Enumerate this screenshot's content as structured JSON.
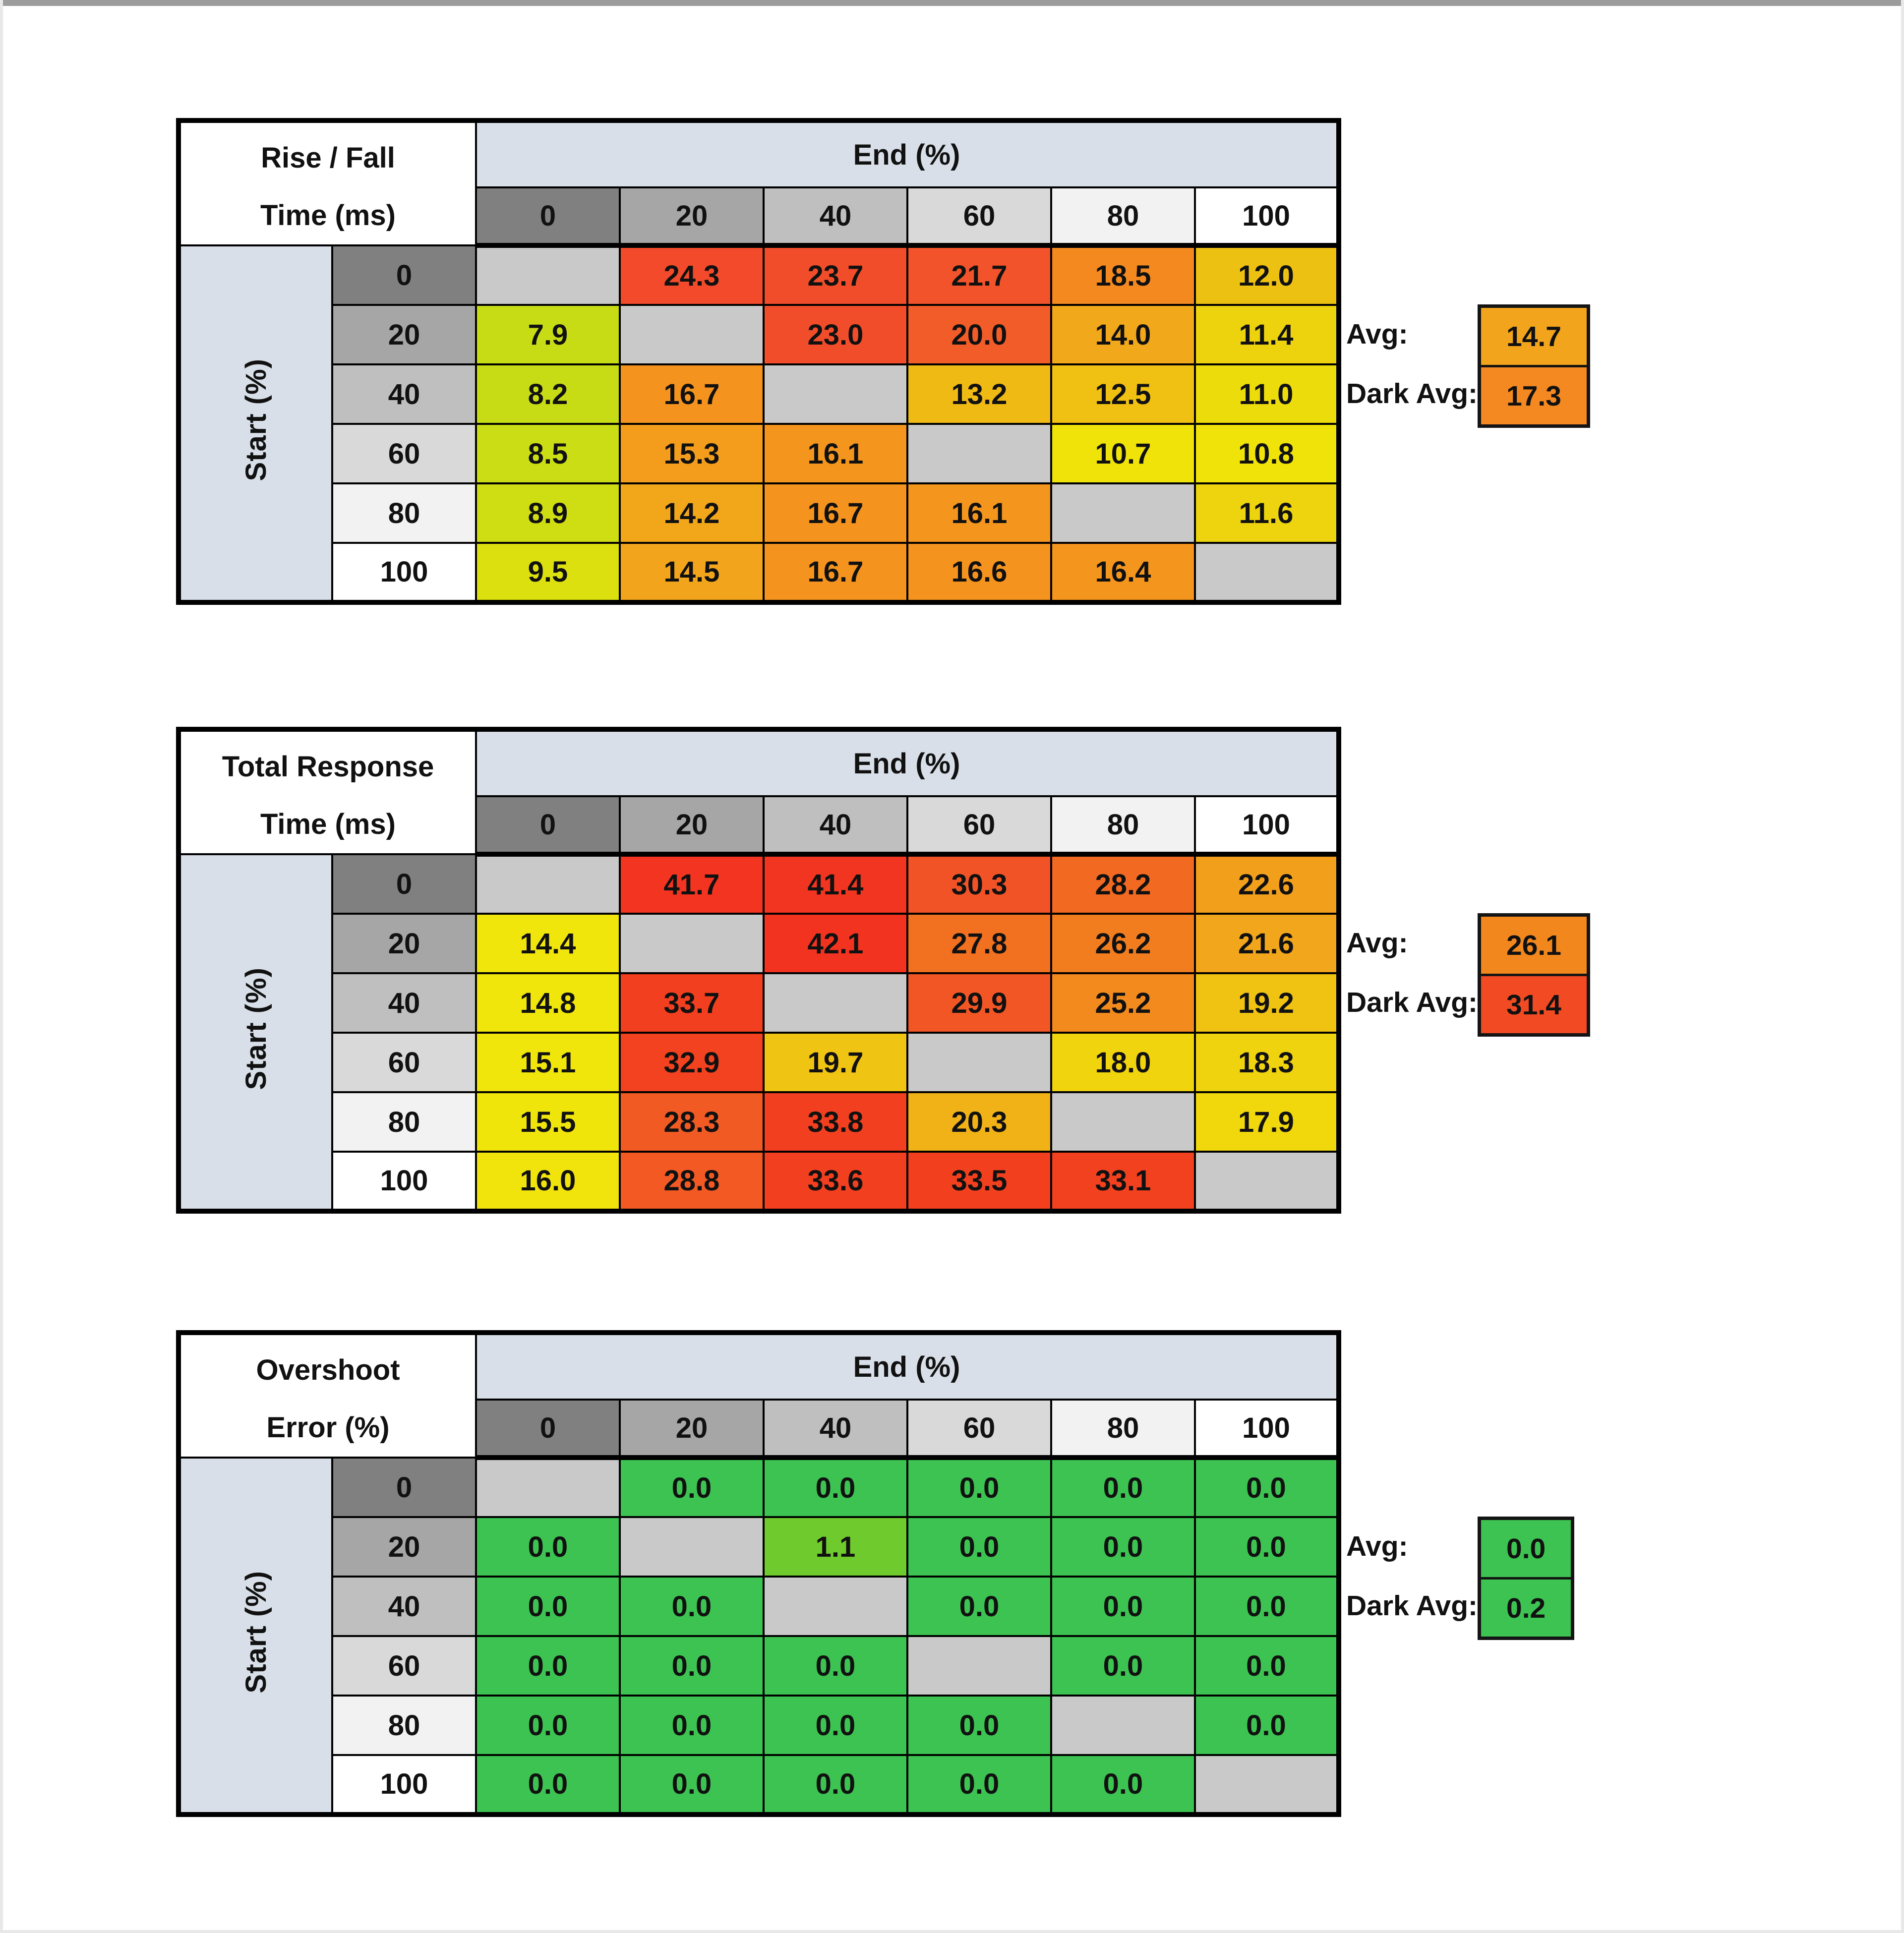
{
  "page": {
    "bg": "#ffffff",
    "top_edge_color": "#9c9c9c",
    "frame_color": "#e8e8e8"
  },
  "shared": {
    "end_label": "End (%)",
    "start_label": "Start (%)",
    "col_headers": [
      "0",
      "20",
      "40",
      "60",
      "80",
      "100"
    ],
    "row_headers": [
      "0",
      "20",
      "40",
      "60",
      "80",
      "100"
    ],
    "header_colors": [
      "#808080",
      "#a6a6a6",
      "#bfbfbf",
      "#d9d9d9",
      "#f2f2f2",
      "#ffffff"
    ],
    "diag_color": "#c9c9c9",
    "band_color": "#d8dfe8",
    "avg_label": "Avg:",
    "dark_avg_label": "Dark Avg:"
  },
  "tables": [
    {
      "title_line1": "Rise / Fall",
      "title_line2": "Time (ms)",
      "avg": {
        "v": "14.7",
        "c": "#f2a41c"
      },
      "dark_avg": {
        "v": "17.3",
        "c": "#f48921"
      },
      "cells": [
        [
          null,
          {
            "v": "24.3",
            "c": "#f24a2a"
          },
          {
            "v": "23.7",
            "c": "#f24d2a"
          },
          {
            "v": "21.7",
            "c": "#f2532a"
          },
          {
            "v": "18.5",
            "c": "#f48a1f"
          },
          {
            "v": "12.0",
            "c": "#edc112"
          }
        ],
        [
          {
            "v": "7.9",
            "c": "#c8dc15"
          },
          null,
          {
            "v": "23.0",
            "c": "#f24d2a"
          },
          {
            "v": "20.0",
            "c": "#f25c28"
          },
          {
            "v": "14.0",
            "c": "#f2a81b"
          },
          {
            "v": "11.4",
            "c": "#edd20e"
          }
        ],
        [
          {
            "v": "8.2",
            "c": "#c8dc15"
          },
          {
            "v": "16.7",
            "c": "#f4931e"
          },
          null,
          {
            "v": "13.2",
            "c": "#f0ba14"
          },
          {
            "v": "12.5",
            "c": "#f0c112"
          },
          {
            "v": "11.0",
            "c": "#eddc0b"
          }
        ],
        [
          {
            "v": "8.5",
            "c": "#cbdd14"
          },
          {
            "v": "15.3",
            "c": "#f49d1d"
          },
          {
            "v": "16.1",
            "c": "#f4961e"
          },
          null,
          {
            "v": "10.7",
            "c": "#f0e309"
          },
          {
            "v": "10.8",
            "c": "#f0e309"
          }
        ],
        [
          {
            "v": "8.9",
            "c": "#cfdd13"
          },
          {
            "v": "14.2",
            "c": "#f2a71b"
          },
          {
            "v": "16.7",
            "c": "#f4931e"
          },
          {
            "v": "16.1",
            "c": "#f4961e"
          },
          null,
          {
            "v": "11.6",
            "c": "#edd40e"
          }
        ],
        [
          {
            "v": "9.5",
            "c": "#dce00e"
          },
          {
            "v": "14.5",
            "c": "#f2a51c"
          },
          {
            "v": "16.7",
            "c": "#f4931e"
          },
          {
            "v": "16.6",
            "c": "#f4941e"
          },
          {
            "v": "16.4",
            "c": "#f4951e"
          },
          null
        ]
      ]
    },
    {
      "title_line1": "Total Response",
      "title_line2": "Time (ms)",
      "avg": {
        "v": "26.1",
        "c": "#f2871e"
      },
      "dark_avg": {
        "v": "31.4",
        "c": "#f24b24"
      },
      "cells": [
        [
          null,
          {
            "v": "41.7",
            "c": "#f23420"
          },
          {
            "v": "41.4",
            "c": "#f23520"
          },
          {
            "v": "30.3",
            "c": "#f25326"
          },
          {
            "v": "28.2",
            "c": "#f26921"
          },
          {
            "v": "22.6",
            "c": "#f2a01c"
          }
        ],
        [
          {
            "v": "14.4",
            "c": "#f0e60b"
          },
          null,
          {
            "v": "42.1",
            "c": "#f23320"
          },
          {
            "v": "27.8",
            "c": "#f27120"
          },
          {
            "v": "26.2",
            "c": "#f27d1f"
          },
          {
            "v": "21.6",
            "c": "#f2a61b"
          }
        ],
        [
          {
            "v": "14.8",
            "c": "#f0e60b"
          },
          {
            "v": "33.7",
            "c": "#f23f1f"
          },
          null,
          {
            "v": "29.9",
            "c": "#f25625"
          },
          {
            "v": "25.2",
            "c": "#f28a1e"
          },
          {
            "v": "19.2",
            "c": "#f0c313"
          }
        ],
        [
          {
            "v": "15.1",
            "c": "#f0e60b"
          },
          {
            "v": "32.9",
            "c": "#f2421f"
          },
          {
            "v": "19.7",
            "c": "#f0c413"
          },
          null,
          {
            "v": "18.0",
            "c": "#f0d40e"
          },
          {
            "v": "18.3",
            "c": "#f0d30f"
          }
        ],
        [
          {
            "v": "15.5",
            "c": "#f0e50b"
          },
          {
            "v": "28.3",
            "c": "#f25a24"
          },
          {
            "v": "33.8",
            "c": "#f23f1f"
          },
          {
            "v": "20.3",
            "c": "#f0b216"
          },
          null,
          {
            "v": "17.9",
            "c": "#f0d80d"
          }
        ],
        [
          {
            "v": "16.0",
            "c": "#f0e40c"
          },
          {
            "v": "28.8",
            "c": "#f25923"
          },
          {
            "v": "33.6",
            "c": "#f23f1f"
          },
          {
            "v": "33.5",
            "c": "#f2401f"
          },
          {
            "v": "33.1",
            "c": "#f2411f"
          },
          null
        ]
      ]
    },
    {
      "title_line1": "Overshoot",
      "title_line2": "Error (%)",
      "avg": {
        "v": "0.0",
        "c": "#3cc351"
      },
      "dark_avg": {
        "v": "0.2",
        "c": "#3cc351"
      },
      "cells": [
        [
          null,
          {
            "v": "0.0",
            "c": "#3cc351"
          },
          {
            "v": "0.0",
            "c": "#3cc351"
          },
          {
            "v": "0.0",
            "c": "#3cc351"
          },
          {
            "v": "0.0",
            "c": "#3cc351"
          },
          {
            "v": "0.0",
            "c": "#3cc351"
          }
        ],
        [
          {
            "v": "0.0",
            "c": "#3cc351"
          },
          null,
          {
            "v": "1.1",
            "c": "#6fca2d"
          },
          {
            "v": "0.0",
            "c": "#3cc351"
          },
          {
            "v": "0.0",
            "c": "#3cc351"
          },
          {
            "v": "0.0",
            "c": "#3cc351"
          }
        ],
        [
          {
            "v": "0.0",
            "c": "#3cc351"
          },
          {
            "v": "0.0",
            "c": "#3cc351"
          },
          null,
          {
            "v": "0.0",
            "c": "#3cc351"
          },
          {
            "v": "0.0",
            "c": "#3cc351"
          },
          {
            "v": "0.0",
            "c": "#3cc351"
          }
        ],
        [
          {
            "v": "0.0",
            "c": "#3cc351"
          },
          {
            "v": "0.0",
            "c": "#3cc351"
          },
          {
            "v": "0.0",
            "c": "#3cc351"
          },
          null,
          {
            "v": "0.0",
            "c": "#3cc351"
          },
          {
            "v": "0.0",
            "c": "#3cc351"
          }
        ],
        [
          {
            "v": "0.0",
            "c": "#3cc351"
          },
          {
            "v": "0.0",
            "c": "#3cc351"
          },
          {
            "v": "0.0",
            "c": "#3cc351"
          },
          {
            "v": "0.0",
            "c": "#3cc351"
          },
          null,
          {
            "v": "0.0",
            "c": "#3cc351"
          }
        ],
        [
          {
            "v": "0.0",
            "c": "#3cc351"
          },
          {
            "v": "0.0",
            "c": "#3cc351"
          },
          {
            "v": "0.0",
            "c": "#3cc351"
          },
          {
            "v": "0.0",
            "c": "#3cc351"
          },
          {
            "v": "0.0",
            "c": "#3cc351"
          },
          null
        ]
      ]
    }
  ],
  "chart_data": [
    {
      "type": "heatmap",
      "title": "Rise / Fall Time (ms)",
      "xlabel": "End (%)",
      "ylabel": "Start (%)",
      "x": [
        0,
        20,
        40,
        60,
        80,
        100
      ],
      "y": [
        0,
        20,
        40,
        60,
        80,
        100
      ],
      "values": [
        [
          null,
          24.3,
          23.7,
          21.7,
          18.5,
          12.0
        ],
        [
          7.9,
          null,
          23.0,
          20.0,
          14.0,
          11.4
        ],
        [
          8.2,
          16.7,
          null,
          13.2,
          12.5,
          11.0
        ],
        [
          8.5,
          15.3,
          16.1,
          null,
          10.7,
          10.8
        ],
        [
          8.9,
          14.2,
          16.7,
          16.1,
          null,
          11.6
        ],
        [
          9.5,
          14.5,
          16.7,
          16.6,
          16.4,
          null
        ]
      ],
      "avg": 14.7,
      "dark_avg": 17.3
    },
    {
      "type": "heatmap",
      "title": "Total Response Time (ms)",
      "xlabel": "End (%)",
      "ylabel": "Start (%)",
      "x": [
        0,
        20,
        40,
        60,
        80,
        100
      ],
      "y": [
        0,
        20,
        40,
        60,
        80,
        100
      ],
      "values": [
        [
          null,
          41.7,
          41.4,
          30.3,
          28.2,
          22.6
        ],
        [
          14.4,
          null,
          42.1,
          27.8,
          26.2,
          21.6
        ],
        [
          14.8,
          33.7,
          null,
          29.9,
          25.2,
          19.2
        ],
        [
          15.1,
          32.9,
          19.7,
          null,
          18.0,
          18.3
        ],
        [
          15.5,
          28.3,
          33.8,
          20.3,
          null,
          17.9
        ],
        [
          16.0,
          28.8,
          33.6,
          33.5,
          33.1,
          null
        ]
      ],
      "avg": 26.1,
      "dark_avg": 31.4
    },
    {
      "type": "heatmap",
      "title": "Overshoot Error (%)",
      "xlabel": "End (%)",
      "ylabel": "Start (%)",
      "x": [
        0,
        20,
        40,
        60,
        80,
        100
      ],
      "y": [
        0,
        20,
        40,
        60,
        80,
        100
      ],
      "values": [
        [
          null,
          0.0,
          0.0,
          0.0,
          0.0,
          0.0
        ],
        [
          0.0,
          null,
          1.1,
          0.0,
          0.0,
          0.0
        ],
        [
          0.0,
          0.0,
          null,
          0.0,
          0.0,
          0.0
        ],
        [
          0.0,
          0.0,
          0.0,
          null,
          0.0,
          0.0
        ],
        [
          0.0,
          0.0,
          0.0,
          0.0,
          null,
          0.0
        ],
        [
          0.0,
          0.0,
          0.0,
          0.0,
          0.0,
          null
        ]
      ],
      "avg": 0.0,
      "dark_avg": 0.2
    }
  ]
}
